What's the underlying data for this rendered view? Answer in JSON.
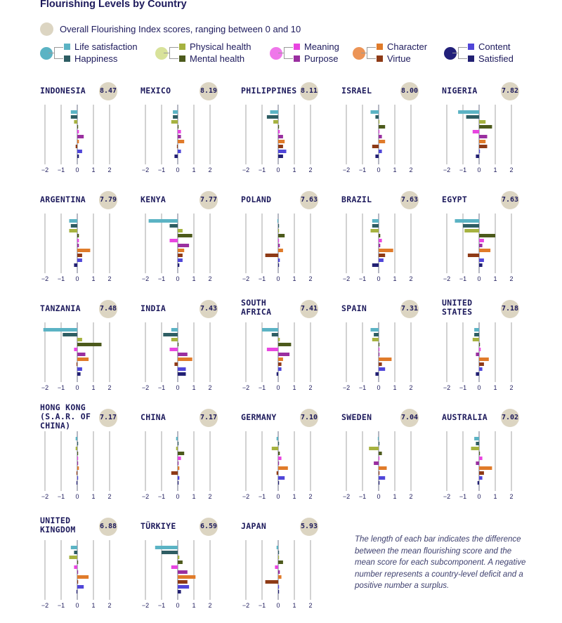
{
  "title": "Flourishing Levels by Country",
  "overall_legend": "Overall Flourishing Index scores, ranging between 0 and 10",
  "legend_groups": [
    {
      "dot_color": "#5bb3c4",
      "items": [
        {
          "label": "Life satisfaction",
          "color": "#5bb3c4"
        },
        {
          "label": "Happiness",
          "color": "#2e5d63"
        }
      ]
    },
    {
      "dot_color": "#d8e29a",
      "items": [
        {
          "label": "Physical health",
          "color": "#a6b240"
        },
        {
          "label": "Mental health",
          "color": "#4c5a1c"
        }
      ]
    },
    {
      "dot_color": "#ef77ea",
      "items": [
        {
          "label": "Meaning",
          "color": "#e845e0"
        },
        {
          "label": "Purpose",
          "color": "#9a2fa0"
        }
      ]
    },
    {
      "dot_color": "#ec9456",
      "items": [
        {
          "label": "Character",
          "color": "#e07b2a"
        },
        {
          "label": "Virtue",
          "color": "#8e3a16"
        }
      ]
    },
    {
      "dot_color": "#22207a",
      "items": [
        {
          "label": "Content",
          "color": "#5046d8"
        },
        {
          "label": "Satisfied",
          "color": "#222073"
        }
      ]
    }
  ],
  "note": "The length of each bar indicates the difference between the mean flourishing score and the mean score for each subcomponent. A negative number represents a country-level deficit and a positive number a surplus.",
  "chart_data": {
    "type": "bar",
    "orientation": "horizontal",
    "title": "Flourishing Levels by Country",
    "xlim": [
      -2,
      2
    ],
    "xticks": [
      "−2",
      "−1",
      "0",
      "1",
      "2"
    ],
    "subcomponents": [
      "Life satisfaction",
      "Happiness",
      "Physical health",
      "Mental health",
      "Meaning",
      "Purpose",
      "Character",
      "Virtue",
      "Content",
      "Satisfied"
    ],
    "colors": [
      "#5bb3c4",
      "#2e5d63",
      "#a6b240",
      "#4c5a1c",
      "#e845e0",
      "#9a2fa0",
      "#e07b2a",
      "#8e3a16",
      "#5046d8",
      "#222073"
    ],
    "countries": [
      {
        "name": "INDONESIA",
        "score": "8.47",
        "values": [
          -0.4,
          -0.4,
          -0.2,
          0.05,
          0.1,
          0.4,
          0.1,
          -0.1,
          0.3,
          0.1
        ]
      },
      {
        "name": "MEXICO",
        "score": "8.19",
        "values": [
          -0.3,
          -0.3,
          -0.4,
          0.05,
          0.2,
          0.2,
          0.4,
          -0.05,
          0.2,
          -0.2
        ]
      },
      {
        "name": "PHILIPPINES",
        "score": "8.11",
        "values": [
          -0.5,
          -0.7,
          -0.3,
          0.05,
          0.1,
          0.3,
          0.4,
          0.3,
          0.5,
          0.3
        ]
      },
      {
        "name": "ISRAEL",
        "score": "8.00",
        "values": [
          -0.5,
          -0.2,
          0.05,
          0.4,
          0.05,
          0.2,
          0.4,
          -0.4,
          0.2,
          -0.2
        ]
      },
      {
        "name": "NIGERIA",
        "score": "7.82",
        "values": [
          -1.3,
          -0.8,
          0.4,
          0.8,
          -0.4,
          0.5,
          0.4,
          0.5,
          0.05,
          -0.2
        ]
      },
      {
        "name": "ARGENTINA",
        "score": "7.79",
        "values": [
          -0.5,
          -0.4,
          -0.5,
          0.1,
          0.1,
          0.1,
          0.8,
          0.3,
          0.3,
          -0.2
        ]
      },
      {
        "name": "KENYA",
        "score": "7.77",
        "values": [
          -1.8,
          -0.5,
          0.3,
          0.9,
          -0.5,
          0.7,
          0.4,
          0.3,
          0.3,
          0.1
        ]
      },
      {
        "name": "POLAND",
        "score": "7.63",
        "values": [
          -0.05,
          0.05,
          0.05,
          0.4,
          0.05,
          0.1,
          0.3,
          -0.8,
          0.1,
          0.05
        ]
      },
      {
        "name": "BRAZIL",
        "score": "7.63",
        "values": [
          -0.4,
          -0.4,
          -0.5,
          0.1,
          0.2,
          0.1,
          0.9,
          0.4,
          0.3,
          -0.4
        ]
      },
      {
        "name": "EGYPT",
        "score": "7.63",
        "values": [
          -1.5,
          -1.0,
          -0.9,
          1.0,
          0.3,
          0.2,
          0.7,
          -0.7,
          0.3,
          0.2
        ]
      },
      {
        "name": "TANZANIA",
        "score": "7.48",
        "values": [
          -2.1,
          -0.9,
          0.3,
          1.5,
          -0.2,
          0.5,
          0.7,
          -0.05,
          0.3,
          0.2
        ]
      },
      {
        "name": "INDIA",
        "score": "7.43",
        "values": [
          -0.4,
          -0.9,
          -0.4,
          0.05,
          -0.5,
          0.6,
          0.9,
          -0.2,
          0.5,
          0.5
        ]
      },
      {
        "name": "SOUTH AFRICA",
        "score": "7.41",
        "values": [
          -1.0,
          -0.4,
          0.1,
          0.8,
          -0.7,
          0.7,
          0.3,
          0.2,
          0.2,
          -0.1
        ]
      },
      {
        "name": "SPAIN",
        "score": "7.31",
        "values": [
          -0.5,
          -0.3,
          -0.4,
          0.05,
          0.05,
          0.05,
          0.8,
          0.2,
          0.4,
          -0.2
        ]
      },
      {
        "name": "UNITED STATES",
        "score": "7.18",
        "values": [
          -0.3,
          -0.3,
          -0.4,
          0.05,
          0.1,
          -0.2,
          0.6,
          0.3,
          0.2,
          -0.2
        ]
      },
      {
        "name": "HONG KONG (S.A.R. OF CHINA)",
        "score": "7.17",
        "values": [
          -0.1,
          0.05,
          -0.1,
          0.05,
          0.05,
          0.05,
          0.1,
          -0.05,
          0.05,
          -0.05
        ]
      },
      {
        "name": "CHINA",
        "score": "7.17",
        "values": [
          -0.1,
          0.05,
          -0.1,
          0.4,
          0.2,
          0.05,
          0.1,
          -0.4,
          0.1,
          0.05
        ]
      },
      {
        "name": "GERMANY",
        "score": "7.10",
        "values": [
          -0.1,
          0.05,
          -0.4,
          0.1,
          0.2,
          0.05,
          0.6,
          -0.1,
          0.4,
          0.05
        ]
      },
      {
        "name": "SWEDEN",
        "score": "7.04",
        "values": [
          -0.05,
          0.05,
          -0.6,
          0.2,
          0.05,
          -0.3,
          0.5,
          0.05,
          0.4,
          0.05
        ]
      },
      {
        "name": "AUSTRALIA",
        "score": "7.02",
        "values": [
          -0.3,
          -0.2,
          -0.5,
          0.05,
          0.2,
          -0.2,
          0.8,
          0.3,
          0.2,
          -0.1
        ]
      },
      {
        "name": "UNITED KINGDOM",
        "score": "6.88",
        "values": [
          -0.4,
          -0.2,
          -0.5,
          0.05,
          -0.2,
          0.05,
          0.7,
          0.05,
          0.4,
          -0.05
        ]
      },
      {
        "name": "TÜRKIYE",
        "score": "6.59",
        "values": [
          -1.4,
          -1.0,
          0.1,
          0.3,
          -0.4,
          0.6,
          1.1,
          0.6,
          0.7,
          0.2
        ]
      },
      {
        "name": "JAPAN",
        "score": "5.93",
        "values": [
          -0.1,
          0.05,
          0.05,
          0.3,
          -0.2,
          0.1,
          0.2,
          -0.8,
          0.05,
          0.05
        ]
      }
    ]
  }
}
